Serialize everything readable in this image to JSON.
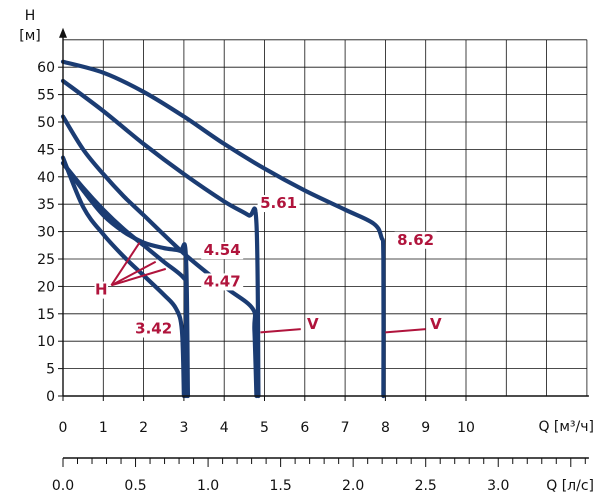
{
  "chart_data": {
    "type": "line",
    "y_axis": {
      "label_top": "H",
      "unit": "[м]",
      "range": [
        0,
        65
      ],
      "ticks": [
        0,
        5,
        10,
        15,
        20,
        25,
        30,
        35,
        40,
        45,
        50,
        55,
        60
      ]
    },
    "x_axis": {
      "label": "Q [м³/ч]",
      "range": [
        0,
        13
      ],
      "ticks": [
        0,
        1,
        2,
        3,
        4,
        5,
        6,
        7,
        8,
        9,
        10
      ]
    },
    "x2_axis": {
      "label": "Q [л/с]",
      "range": [
        0,
        3.6111
      ],
      "ticks": [
        "0.0",
        "0.5",
        "1.0",
        "1.5",
        "2.0",
        "2.5",
        "3.0"
      ],
      "tick_values": [
        0,
        0.5,
        1.0,
        1.5,
        2.0,
        2.5,
        3.0
      ]
    },
    "grid": true,
    "line_color": "#1b3c73",
    "annotation_color": "#b0143c",
    "series": [
      {
        "points": [
          [
            0,
            43.5
          ],
          [
            0.5,
            34.5
          ],
          [
            1.0,
            29.5
          ],
          [
            1.5,
            25.5
          ],
          [
            2.0,
            22
          ],
          [
            2.5,
            18.5
          ],
          [
            2.8,
            16
          ],
          [
            2.95,
            12
          ],
          [
            3.0,
            0
          ]
        ]
      },
      {
        "points": [
          [
            0,
            42.5
          ],
          [
            0.5,
            38
          ],
          [
            1.0,
            34
          ],
          [
            1.5,
            30.5
          ],
          [
            2.0,
            27.5
          ],
          [
            2.5,
            24.5
          ],
          [
            3.0,
            21.5
          ],
          [
            3.05,
            19
          ],
          [
            3.05,
            0
          ]
        ]
      },
      {
        "points": [
          [
            0,
            42.5
          ],
          [
            0.5,
            37.5
          ],
          [
            1.0,
            33
          ],
          [
            1.5,
            30
          ],
          [
            2.0,
            28
          ],
          [
            2.5,
            27
          ],
          [
            2.9,
            26.5
          ],
          [
            3.05,
            25.5
          ],
          [
            3.1,
            0
          ]
        ]
      },
      {
        "points": [
          [
            0,
            51
          ],
          [
            0.5,
            45
          ],
          [
            1.0,
            40.5
          ],
          [
            1.5,
            36.5
          ],
          [
            2.0,
            33
          ],
          [
            3.0,
            26
          ],
          [
            4.0,
            20
          ],
          [
            4.7,
            16
          ],
          [
            4.75,
            12
          ],
          [
            4.8,
            0
          ]
        ]
      },
      {
        "points": [
          [
            0,
            57.5
          ],
          [
            1.0,
            52
          ],
          [
            2.0,
            46
          ],
          [
            3.0,
            40.5
          ],
          [
            4.0,
            35.5
          ],
          [
            4.6,
            33
          ],
          [
            4.8,
            31.5
          ],
          [
            4.85,
            0
          ]
        ]
      },
      {
        "points": [
          [
            0,
            61
          ],
          [
            1.0,
            59
          ],
          [
            2.0,
            55.5
          ],
          [
            3.0,
            51
          ],
          [
            4.0,
            46
          ],
          [
            5.0,
            41.5
          ],
          [
            6.0,
            37.5
          ],
          [
            7.0,
            34
          ],
          [
            7.7,
            31.5
          ],
          [
            7.9,
            29
          ],
          [
            7.95,
            25
          ],
          [
            7.95,
            0
          ]
        ]
      }
    ],
    "annotations": [
      {
        "text": "5.61",
        "x": 5.35,
        "y": 34.3
      },
      {
        "text": "8.62",
        "x": 8.75,
        "y": 27.6
      },
      {
        "text": "4.54",
        "x": 3.95,
        "y": 25.7
      },
      {
        "text": "4.47",
        "x": 3.95,
        "y": 20.0
      },
      {
        "text": "3.42",
        "x": 2.25,
        "y": 11.4
      },
      {
        "text": "H",
        "x": 0.95,
        "y": 18.5
      },
      {
        "text": "V",
        "x": 6.2,
        "y": 12.2
      },
      {
        "text": "V",
        "x": 9.25,
        "y": 12.2
      }
    ],
    "pointers": [
      {
        "from": [
          1.2,
          20.2
        ],
        "to": [
          1.9,
          28.0
        ]
      },
      {
        "from": [
          1.2,
          20.2
        ],
        "to": [
          2.3,
          24.5
        ]
      },
      {
        "from": [
          1.2,
          20.2
        ],
        "to": [
          2.55,
          23.2
        ]
      },
      {
        "from": [
          4.9,
          11.6
        ],
        "to": [
          5.9,
          12.2
        ]
      },
      {
        "from": [
          8.0,
          11.6
        ],
        "to": [
          9.0,
          12.2
        ]
      }
    ]
  }
}
